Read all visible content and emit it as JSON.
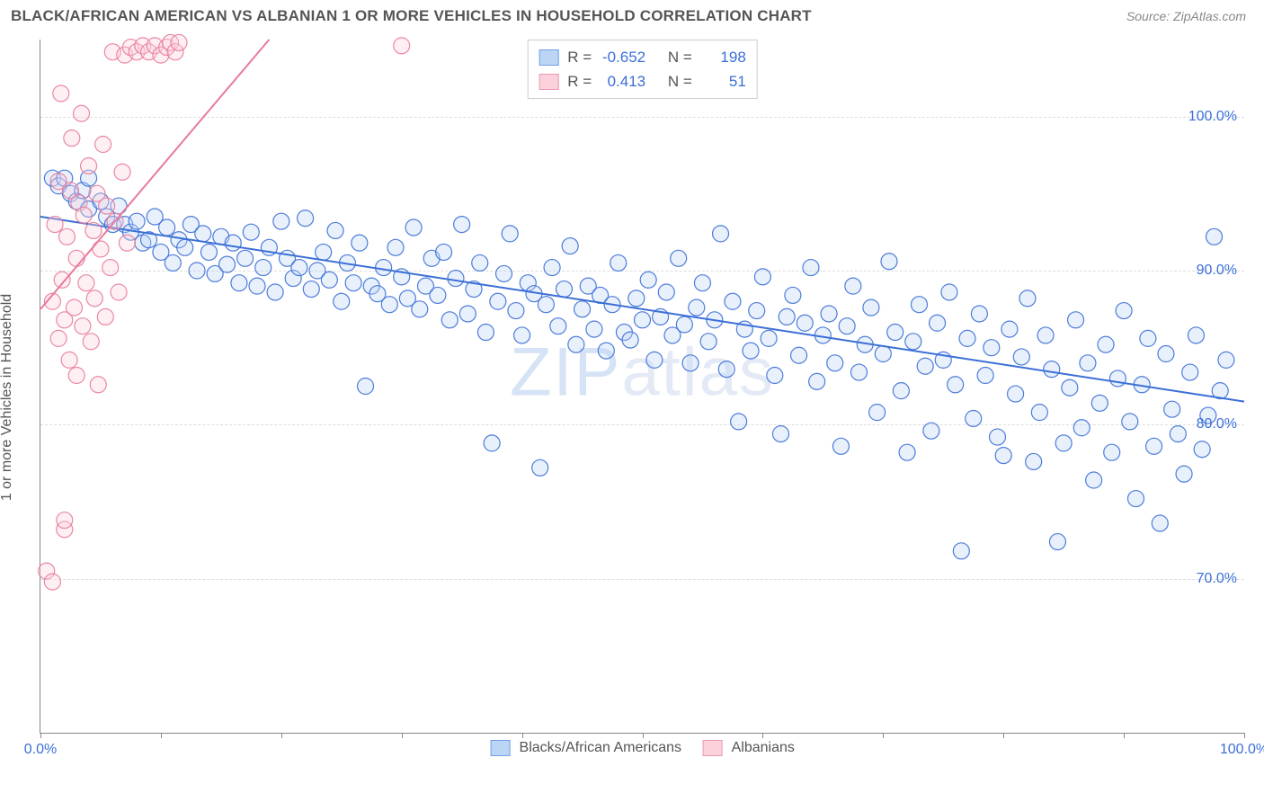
{
  "header": {
    "title": "BLACK/AFRICAN AMERICAN VS ALBANIAN 1 OR MORE VEHICLES IN HOUSEHOLD CORRELATION CHART",
    "source_label": "Source: ZipAtlas.com"
  },
  "watermark": {
    "prefix": "ZIP",
    "suffix": "atlas"
  },
  "chart": {
    "type": "scatter",
    "y_axis_label": "1 or more Vehicles in Household",
    "xlim": [
      0,
      100
    ],
    "ylim": [
      60,
      105
    ],
    "x_ticks": [
      0,
      10,
      20,
      30,
      40,
      50,
      60,
      70,
      80,
      90,
      100
    ],
    "x_tick_labels": {
      "0": "0.0%",
      "100": "100.0%"
    },
    "y_gridlines": [
      70,
      80,
      90,
      100
    ],
    "y_tick_labels": {
      "70": "70.0%",
      "80": "80.0%",
      "90": "90.0%",
      "100": "100.0%"
    },
    "background_color": "#ffffff",
    "grid_color": "#dddddd",
    "axis_color": "#888888",
    "tick_label_color": "#3b6fd6",
    "marker_radius": 9,
    "marker_fill_opacity": 0.35,
    "marker_stroke_opacity": 0.9,
    "marker_stroke_width": 1.2,
    "trend_line_width": 2,
    "series": [
      {
        "name": "Blacks/African Americans",
        "color_fill": "#bcd5f5",
        "color_stroke": "#3b6fd6",
        "legend_swatch_fill": "#bcd5f5",
        "legend_swatch_border": "#6fa0e8",
        "correlation_r": -0.652,
        "n": 198,
        "trend": {
          "x1": 0,
          "y1": 93.5,
          "x2": 100,
          "y2": 81.5
        },
        "points": [
          [
            1,
            96
          ],
          [
            1.5,
            95.5
          ],
          [
            2,
            96
          ],
          [
            2.5,
            95
          ],
          [
            3,
            94.5
          ],
          [
            3.5,
            95.2
          ],
          [
            4,
            94
          ],
          [
            4,
            96
          ],
          [
            5,
            94.5
          ],
          [
            5.5,
            93.5
          ],
          [
            6,
            93
          ],
          [
            6.5,
            94.2
          ],
          [
            7,
            93
          ],
          [
            7.5,
            92.5
          ],
          [
            8,
            93.2
          ],
          [
            8.5,
            91.8
          ],
          [
            9,
            92
          ],
          [
            9.5,
            93.5
          ],
          [
            10,
            91.2
          ],
          [
            10.5,
            92.8
          ],
          [
            11,
            90.5
          ],
          [
            11.5,
            92
          ],
          [
            12,
            91.5
          ],
          [
            12.5,
            93
          ],
          [
            13,
            90
          ],
          [
            13.5,
            92.4
          ],
          [
            14,
            91.2
          ],
          [
            14.5,
            89.8
          ],
          [
            15,
            92.2
          ],
          [
            15.5,
            90.4
          ],
          [
            16,
            91.8
          ],
          [
            16.5,
            89.2
          ],
          [
            17,
            90.8
          ],
          [
            17.5,
            92.5
          ],
          [
            18,
            89
          ],
          [
            18.5,
            90.2
          ],
          [
            19,
            91.5
          ],
          [
            19.5,
            88.6
          ],
          [
            20,
            93.2
          ],
          [
            20.5,
            90.8
          ],
          [
            21,
            89.5
          ],
          [
            21.5,
            90.2
          ],
          [
            22,
            93.4
          ],
          [
            22.5,
            88.8
          ],
          [
            23,
            90
          ],
          [
            23.5,
            91.2
          ],
          [
            24,
            89.4
          ],
          [
            24.5,
            92.6
          ],
          [
            25,
            88
          ],
          [
            25.5,
            90.5
          ],
          [
            26,
            89.2
          ],
          [
            26.5,
            91.8
          ],
          [
            27,
            82.5
          ],
          [
            27.5,
            89
          ],
          [
            28,
            88.5
          ],
          [
            28.5,
            90.2
          ],
          [
            29,
            87.8
          ],
          [
            29.5,
            91.5
          ],
          [
            30,
            89.6
          ],
          [
            30.5,
            88.2
          ],
          [
            31,
            92.8
          ],
          [
            31.5,
            87.5
          ],
          [
            32,
            89
          ],
          [
            32.5,
            90.8
          ],
          [
            33,
            88.4
          ],
          [
            33.5,
            91.2
          ],
          [
            34,
            86.8
          ],
          [
            34.5,
            89.5
          ],
          [
            35,
            93
          ],
          [
            35.5,
            87.2
          ],
          [
            36,
            88.8
          ],
          [
            36.5,
            90.5
          ],
          [
            37,
            86
          ],
          [
            37.5,
            78.8
          ],
          [
            38,
            88
          ],
          [
            38.5,
            89.8
          ],
          [
            39,
            92.4
          ],
          [
            39.5,
            87.4
          ],
          [
            40,
            85.8
          ],
          [
            40.5,
            89.2
          ],
          [
            41,
            88.5
          ],
          [
            41.5,
            77.2
          ],
          [
            42,
            87.8
          ],
          [
            42.5,
            90.2
          ],
          [
            43,
            86.4
          ],
          [
            43.5,
            88.8
          ],
          [
            44,
            91.6
          ],
          [
            44.5,
            85.2
          ],
          [
            45,
            87.5
          ],
          [
            45.5,
            89
          ],
          [
            46,
            86.2
          ],
          [
            46.5,
            88.4
          ],
          [
            47,
            84.8
          ],
          [
            47.5,
            87.8
          ],
          [
            48,
            90.5
          ],
          [
            48.5,
            86
          ],
          [
            49,
            85.5
          ],
          [
            49.5,
            88.2
          ],
          [
            50,
            86.8
          ],
          [
            50.5,
            89.4
          ],
          [
            51,
            84.2
          ],
          [
            51.5,
            87
          ],
          [
            52,
            88.6
          ],
          [
            52.5,
            85.8
          ],
          [
            53,
            90.8
          ],
          [
            53.5,
            86.5
          ],
          [
            54,
            84
          ],
          [
            54.5,
            87.6
          ],
          [
            55,
            89.2
          ],
          [
            55.5,
            85.4
          ],
          [
            56,
            86.8
          ],
          [
            56.5,
            92.4
          ],
          [
            57,
            83.6
          ],
          [
            57.5,
            88
          ],
          [
            58,
            80.2
          ],
          [
            58.5,
            86.2
          ],
          [
            59,
            84.8
          ],
          [
            59.5,
            87.4
          ],
          [
            60,
            89.6
          ],
          [
            60.5,
            85.6
          ],
          [
            61,
            83.2
          ],
          [
            61.5,
            79.4
          ],
          [
            62,
            87
          ],
          [
            62.5,
            88.4
          ],
          [
            63,
            84.5
          ],
          [
            63.5,
            86.6
          ],
          [
            64,
            90.2
          ],
          [
            64.5,
            82.8
          ],
          [
            65,
            85.8
          ],
          [
            65.5,
            87.2
          ],
          [
            66,
            84
          ],
          [
            66.5,
            78.6
          ],
          [
            67,
            86.4
          ],
          [
            67.5,
            89
          ],
          [
            68,
            83.4
          ],
          [
            68.5,
            85.2
          ],
          [
            69,
            87.6
          ],
          [
            69.5,
            80.8
          ],
          [
            70,
            84.6
          ],
          [
            70.5,
            90.6
          ],
          [
            71,
            86
          ],
          [
            71.5,
            82.2
          ],
          [
            72,
            78.2
          ],
          [
            72.5,
            85.4
          ],
          [
            73,
            87.8
          ],
          [
            73.5,
            83.8
          ],
          [
            74,
            79.6
          ],
          [
            74.5,
            86.6
          ],
          [
            75,
            84.2
          ],
          [
            75.5,
            88.6
          ],
          [
            76,
            82.6
          ],
          [
            76.5,
            71.8
          ],
          [
            77,
            85.6
          ],
          [
            77.5,
            80.4
          ],
          [
            78,
            87.2
          ],
          [
            78.5,
            83.2
          ],
          [
            79,
            85
          ],
          [
            79.5,
            79.2
          ],
          [
            80,
            78
          ],
          [
            80.5,
            86.2
          ],
          [
            81,
            82
          ],
          [
            81.5,
            84.4
          ],
          [
            82,
            88.2
          ],
          [
            82.5,
            77.6
          ],
          [
            83,
            80.8
          ],
          [
            83.5,
            85.8
          ],
          [
            84,
            83.6
          ],
          [
            84.5,
            72.4
          ],
          [
            85,
            78.8
          ],
          [
            85.5,
            82.4
          ],
          [
            86,
            86.8
          ],
          [
            86.5,
            79.8
          ],
          [
            87,
            84
          ],
          [
            87.5,
            76.4
          ],
          [
            88,
            81.4
          ],
          [
            88.5,
            85.2
          ],
          [
            89,
            78.2
          ],
          [
            89.5,
            83
          ],
          [
            90,
            87.4
          ],
          [
            90.5,
            80.2
          ],
          [
            91,
            75.2
          ],
          [
            91.5,
            82.6
          ],
          [
            92,
            85.6
          ],
          [
            92.5,
            78.6
          ],
          [
            93,
            73.6
          ],
          [
            93.5,
            84.6
          ],
          [
            94,
            81
          ],
          [
            94.5,
            79.4
          ],
          [
            95,
            76.8
          ],
          [
            95.5,
            83.4
          ],
          [
            96,
            85.8
          ],
          [
            96.5,
            78.4
          ],
          [
            97,
            80.6
          ],
          [
            97.5,
            92.2
          ],
          [
            98,
            82.2
          ],
          [
            98.5,
            84.2
          ]
        ]
      },
      {
        "name": "Albanians",
        "color_fill": "#fcd1dc",
        "color_stroke": "#e87b9a",
        "legend_swatch_fill": "#fcd1dc",
        "legend_swatch_border": "#e999b0",
        "correlation_r": 0.413,
        "n": 51,
        "trend": {
          "x1": 0,
          "y1": 87.5,
          "x2": 19,
          "y2": 105
        },
        "points": [
          [
            0.5,
            70.5
          ],
          [
            1,
            69.8
          ],
          [
            1,
            88
          ],
          [
            1.2,
            93
          ],
          [
            1.5,
            85.6
          ],
          [
            1.5,
            95.8
          ],
          [
            1.7,
            101.5
          ],
          [
            1.8,
            89.4
          ],
          [
            2,
            73.2
          ],
          [
            2,
            73.8
          ],
          [
            2,
            86.8
          ],
          [
            2.2,
            92.2
          ],
          [
            2.4,
            84.2
          ],
          [
            2.5,
            95.2
          ],
          [
            2.6,
            98.6
          ],
          [
            2.8,
            87.6
          ],
          [
            3,
            90.8
          ],
          [
            3,
            83.2
          ],
          [
            3.2,
            94.4
          ],
          [
            3.4,
            100.2
          ],
          [
            3.5,
            86.4
          ],
          [
            3.6,
            93.6
          ],
          [
            3.8,
            89.2
          ],
          [
            4,
            96.8
          ],
          [
            4.2,
            85.4
          ],
          [
            4.4,
            92.6
          ],
          [
            4.5,
            88.2
          ],
          [
            4.7,
            95
          ],
          [
            4.8,
            82.6
          ],
          [
            5,
            91.4
          ],
          [
            5.2,
            98.2
          ],
          [
            5.4,
            87
          ],
          [
            5.5,
            94.2
          ],
          [
            5.8,
            90.2
          ],
          [
            6,
            104.2
          ],
          [
            6.2,
            93.2
          ],
          [
            6.5,
            88.6
          ],
          [
            6.8,
            96.4
          ],
          [
            7,
            104
          ],
          [
            7.2,
            91.8
          ],
          [
            7.5,
            104.5
          ],
          [
            8,
            104.2
          ],
          [
            8.5,
            104.6
          ],
          [
            9,
            104.2
          ],
          [
            9.5,
            104.6
          ],
          [
            10,
            104
          ],
          [
            10.5,
            104.5
          ],
          [
            10.8,
            104.8
          ],
          [
            11.2,
            104.2
          ],
          [
            11.5,
            104.8
          ],
          [
            30,
            104.6
          ]
        ]
      }
    ],
    "legend_top": {
      "r_prefix": "R =",
      "n_prefix": "N ="
    },
    "legend_bottom": [
      {
        "label": "Blacks/African Americans",
        "fill": "#bcd5f5",
        "border": "#6fa0e8"
      },
      {
        "label": "Albanians",
        "fill": "#fcd1dc",
        "border": "#e999b0"
      }
    ]
  }
}
